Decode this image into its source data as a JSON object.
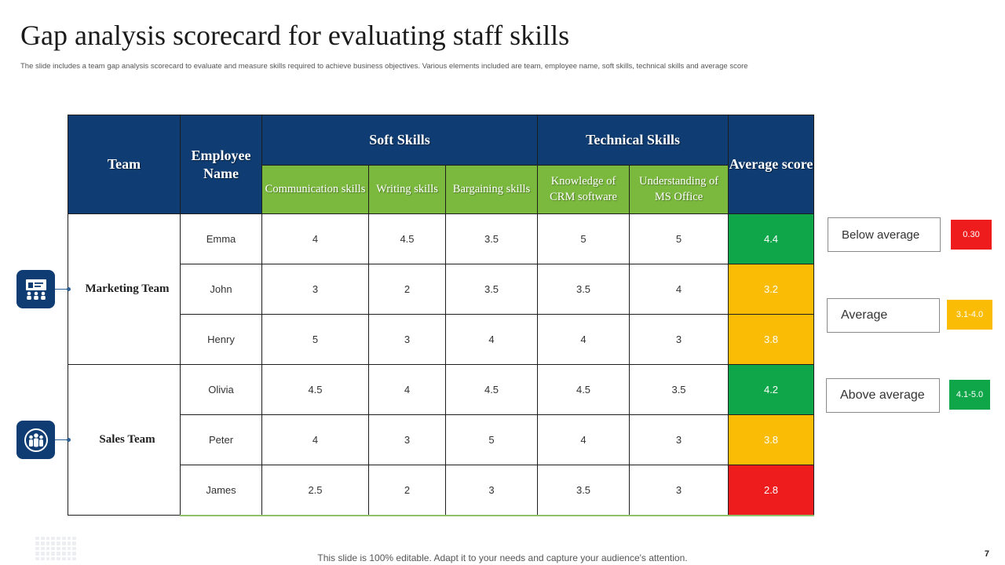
{
  "slide": {
    "title": "Gap analysis scorecard for evaluating staff skills",
    "subtitle": "The slide includes a team gap analysis scorecard to evaluate and measure skills required to achieve business objectives. Various elements included are team, employee name, soft skills, technical skills and average score",
    "footer": "This slide is 100% editable. Adapt it to your needs and capture your audience's attention.",
    "page_number": "7"
  },
  "table": {
    "headers": {
      "team": "Team",
      "employee_name": "Employee Name",
      "soft_skills": "Soft Skills",
      "technical_skills": "Technical Skills",
      "average_score": "Average score"
    },
    "sub_headers": [
      "Communication skills",
      "Writing skills",
      "Bargaining skills",
      "Knowledge of CRM software",
      "Understanding of MS Office"
    ],
    "teams": [
      {
        "name": "Marketing Team",
        "icon": "presentation-audience-icon",
        "rows": [
          {
            "employee": "Emma",
            "scores": [
              "4",
              "4.5",
              "3.5",
              "5",
              "5"
            ],
            "average": "4.4",
            "level": "above"
          },
          {
            "employee": "John",
            "scores": [
              "3",
              "2",
              "3.5",
              "3.5",
              "4"
            ],
            "average": "3.2",
            "level": "average"
          },
          {
            "employee": "Henry",
            "scores": [
              "5",
              "3",
              "4",
              "4",
              "3"
            ],
            "average": "3.8",
            "level": "average"
          }
        ]
      },
      {
        "name": "Sales Team",
        "icon": "team-group-icon",
        "rows": [
          {
            "employee": "Olivia",
            "scores": [
              "4.5",
              "4",
              "4.5",
              "4.5",
              "3.5"
            ],
            "average": "4.2",
            "level": "above"
          },
          {
            "employee": "Peter",
            "scores": [
              "4",
              "3",
              "5",
              "4",
              "3"
            ],
            "average": "3.8",
            "level": "average"
          },
          {
            "employee": "James",
            "scores": [
              "2.5",
              "2",
              "3",
              "3.5",
              "3"
            ],
            "average": "2.8",
            "level": "below"
          }
        ]
      }
    ]
  },
  "legend": [
    {
      "label": "Below average",
      "range": "0.30",
      "level": "below"
    },
    {
      "label": "Average",
      "range": "3.1-4.0",
      "level": "average"
    },
    {
      "label": "Above average",
      "range": "4.1-5.0",
      "level": "above"
    }
  ],
  "colors": {
    "header_blue": "#0f3d73",
    "sub_header_green": "#7ab83e",
    "below": "#ee1c1c",
    "average": "#fbbc05",
    "above": "#0fa64a"
  }
}
